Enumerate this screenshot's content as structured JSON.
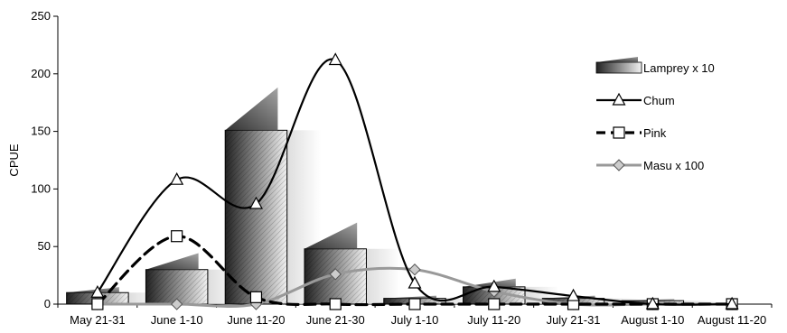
{
  "chart_data": {
    "type": "bar",
    "title": "",
    "xlabel": "",
    "ylabel": "CPUE",
    "ylim": [
      0,
      250
    ],
    "yticks": [
      0,
      50,
      100,
      150,
      200,
      250
    ],
    "grid": false,
    "legend_position": "right",
    "categories": [
      "May 21-31",
      "June 1-10",
      "June 11-20",
      "June 21-30",
      "July 1-10",
      "July 11-20",
      "July 21-31",
      "August 1-10",
      "August 11-20"
    ],
    "series": [
      {
        "name": "Lamprey x 10",
        "kind": "bar",
        "values": [
          10,
          30,
          151,
          48,
          5,
          15,
          5,
          3,
          0
        ]
      },
      {
        "name": "Chum",
        "kind": "line",
        "marker": "triangle",
        "values": [
          10,
          108,
          87,
          212,
          18,
          15,
          7,
          0,
          0
        ]
      },
      {
        "name": "Pink",
        "kind": "line",
        "marker": "square",
        "dash": true,
        "values": [
          0,
          59,
          6,
          0,
          0,
          0,
          0,
          0,
          0
        ]
      },
      {
        "name": "Masu x 100",
        "kind": "line",
        "marker": "diamond",
        "values": [
          0,
          0,
          0,
          26,
          30,
          11,
          0,
          0,
          0
        ]
      }
    ]
  }
}
